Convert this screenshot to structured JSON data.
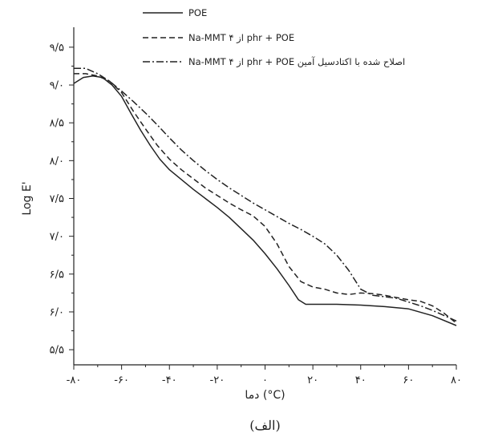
{
  "chart_data": {
    "type": "line",
    "xlabel": "دما (°C)",
    "ylabel": "Log E'",
    "caption": "(الف)",
    "xlim": [
      -80,
      80
    ],
    "ylim": [
      5.3,
      9.7
    ],
    "x_ticks": [
      -80,
      -60,
      -40,
      -20,
      0,
      20,
      40,
      60,
      80
    ],
    "x_tick_labels": [
      "-۸۰",
      "-۶۰",
      "-۴۰",
      "-۲۰",
      "۰",
      "۲۰",
      "۴۰",
      "۶۰",
      "۸۰"
    ],
    "y_ticks": [
      5.5,
      6.0,
      6.5,
      7.0,
      7.5,
      8.0,
      8.5,
      9.0,
      9.5
    ],
    "y_tick_labels": [
      "۵/۵",
      "۶/۰",
      "۶/۵",
      "۷/۰",
      "۷/۵",
      "۸/۰",
      "۸/۵",
      "۹/۰",
      "۹/۵"
    ],
    "legend_position": "top",
    "series": [
      {
        "name": "POE",
        "style": "solid",
        "x": [
          -80,
          -76,
          -72,
          -68,
          -64,
          -60,
          -56,
          -52,
          -48,
          -44,
          -40,
          -35,
          -30,
          -25,
          -20,
          -15,
          -10,
          -5,
          0,
          5,
          10,
          14,
          17,
          20,
          30,
          40,
          50,
          60,
          70,
          80
        ],
        "y": [
          9.02,
          9.1,
          9.12,
          9.1,
          9.0,
          8.85,
          8.62,
          8.4,
          8.2,
          8.02,
          7.88,
          7.75,
          7.62,
          7.5,
          7.38,
          7.25,
          7.1,
          6.95,
          6.77,
          6.57,
          6.35,
          6.16,
          6.1,
          6.1,
          6.1,
          6.09,
          6.07,
          6.04,
          5.95,
          5.82
        ]
      },
      {
        "name": "Na-MMT از ۴ phr + POE",
        "style": "dashed",
        "x": [
          -80,
          -75,
          -70,
          -65,
          -60,
          -55,
          -50,
          -45,
          -40,
          -35,
          -30,
          -25,
          -20,
          -15,
          -10,
          -5,
          0,
          5,
          10,
          15,
          20,
          25,
          30,
          35,
          40,
          45,
          50,
          55,
          60,
          65,
          70,
          75,
          80
        ],
        "y": [
          9.15,
          9.15,
          9.12,
          9.05,
          8.9,
          8.65,
          8.42,
          8.2,
          8.02,
          7.88,
          7.76,
          7.64,
          7.54,
          7.44,
          7.35,
          7.27,
          7.13,
          6.9,
          6.6,
          6.4,
          6.33,
          6.3,
          6.25,
          6.23,
          6.25,
          6.24,
          6.22,
          6.19,
          6.16,
          6.14,
          6.08,
          5.98,
          5.85
        ]
      },
      {
        "name": "Na-MMT از ۴ phr + POE اصلاح شده با اکتادسیل آمین",
        "style": "dashdot",
        "x": [
          -80,
          -75,
          -70,
          -65,
          -60,
          -55,
          -50,
          -45,
          -40,
          -35,
          -30,
          -25,
          -20,
          -15,
          -10,
          -5,
          0,
          5,
          10,
          15,
          20,
          25,
          30,
          35,
          40,
          45,
          50,
          55,
          60,
          65,
          70,
          75,
          80
        ],
        "y": [
          9.22,
          9.22,
          9.15,
          9.05,
          8.92,
          8.78,
          8.63,
          8.47,
          8.3,
          8.14,
          8.0,
          7.87,
          7.75,
          7.64,
          7.54,
          7.44,
          7.35,
          7.26,
          7.17,
          7.09,
          7.0,
          6.9,
          6.75,
          6.55,
          6.3,
          6.22,
          6.2,
          6.18,
          6.13,
          6.08,
          6.02,
          5.95,
          5.88
        ]
      }
    ]
  }
}
